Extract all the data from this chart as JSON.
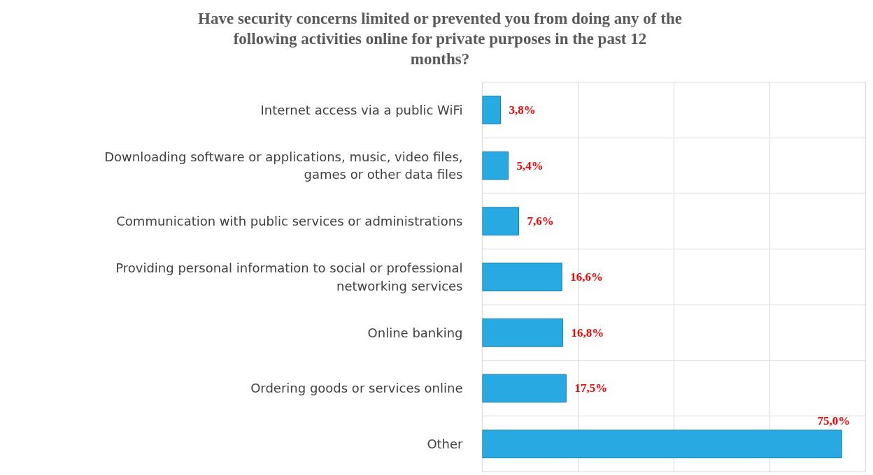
{
  "chart_data": {
    "type": "bar",
    "orientation": "horizontal",
    "title": "Have security concerns limited or prevented you from doing any of the following activities online for private purposes in the past 12 months?",
    "categories": [
      "Internet access via a public WiFi",
      "Downloading software or applications, music, video files, games or other data files",
      "Communication with public services or administrations",
      "Providing personal information to social or professional networking services",
      "Online banking",
      "Ordering goods or services online",
      "Other"
    ],
    "values": [
      3.8,
      5.4,
      7.6,
      16.6,
      16.8,
      17.5,
      75.0
    ],
    "value_labels": [
      "3,8%",
      "5,4%",
      "7,6%",
      "16,6%",
      "16,8%",
      "17,5%",
      "75,0%"
    ],
    "color": "#29a9e1",
    "xlim": [
      0,
      80
    ],
    "xticks": [
      {
        "value": 0,
        "label": null
      },
      {
        "value": 20,
        "label": null
      },
      {
        "value": 40,
        "label": null
      },
      {
        "value": 60,
        "label": null
      },
      {
        "value": 80,
        "label": null
      }
    ],
    "tick_labels": "y",
    "grid": true
  }
}
